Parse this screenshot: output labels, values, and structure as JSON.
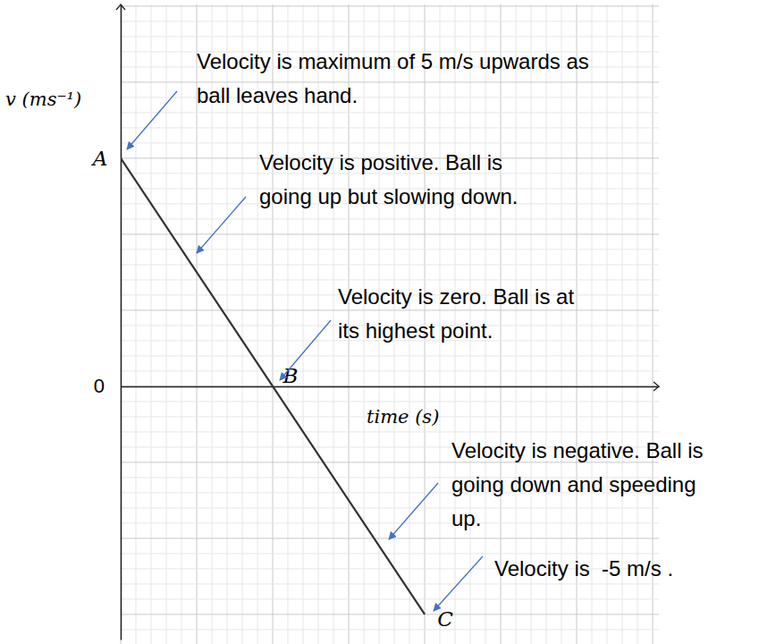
{
  "chart_data": {
    "type": "line",
    "x_label": "time (s)",
    "y_label": "v (ms⁻¹)",
    "x": [
      0,
      0.5,
      1
    ],
    "values": [
      5,
      0,
      -5
    ],
    "point_labels": [
      "A",
      "B",
      "C"
    ],
    "color": "#333333",
    "xlim": [
      0,
      1.77
    ],
    "ylim": [
      -5.55,
      8.37
    ],
    "xticks": [],
    "yticks": [
      0
    ],
    "annotations": [
      {
        "lines": [
          "Velocity is maximum of 5 m/s upwards as",
          "ball leaves hand."
        ]
      },
      {
        "lines": [
          "Velocity is positive. Ball is",
          "going up but slowing down."
        ]
      },
      {
        "lines": [
          "Velocity is zero. Ball is at",
          "its highest point."
        ]
      },
      {
        "lines": [
          "Velocity is negative. Ball is",
          "going down and speeding",
          "up."
        ]
      },
      {
        "lines": [
          "Velocity is  -5 m/s ."
        ]
      }
    ]
  }
}
